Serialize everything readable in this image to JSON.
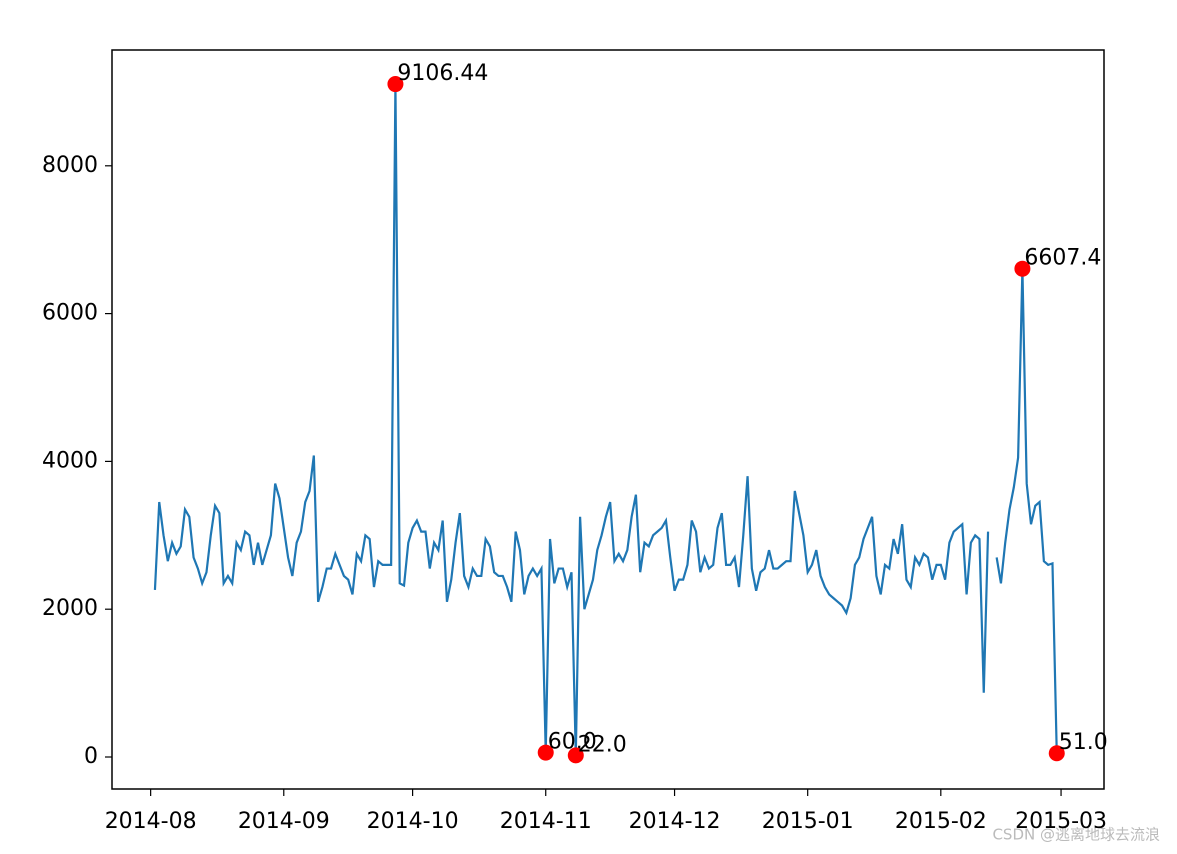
{
  "chart_data": {
    "type": "line",
    "xlim": [
      "2014-07-23",
      "2015-03-11"
    ],
    "ylim": [
      -433,
      9567
    ],
    "xticks": [
      {
        "value": "2014-08-01",
        "label": "2014-08"
      },
      {
        "value": "2014-09-01",
        "label": "2014-09"
      },
      {
        "value": "2014-10-01",
        "label": "2014-10"
      },
      {
        "value": "2014-11-01",
        "label": "2014-11"
      },
      {
        "value": "2014-12-01",
        "label": "2014-12"
      },
      {
        "value": "2015-01-01",
        "label": "2015-01"
      },
      {
        "value": "2015-02-01",
        "label": "2015-02"
      },
      {
        "value": "2015-03-01",
        "label": "2015-03"
      }
    ],
    "yticks": [
      0,
      2000,
      4000,
      6000,
      8000
    ],
    "series": [
      {
        "color": "#1f77b4",
        "x": [
          "2014-08-02",
          "2014-08-03",
          "2014-08-04",
          "2014-08-05",
          "2014-08-06",
          "2014-08-07",
          "2014-08-08",
          "2014-08-09",
          "2014-08-10",
          "2014-08-11",
          "2014-08-12",
          "2014-08-13",
          "2014-08-14",
          "2014-08-15",
          "2014-08-16",
          "2014-08-17",
          "2014-08-18",
          "2014-08-19",
          "2014-08-20",
          "2014-08-21",
          "2014-08-22",
          "2014-08-23",
          "2014-08-24",
          "2014-08-25",
          "2014-08-26",
          "2014-08-27",
          "2014-08-28",
          "2014-08-29",
          "2014-08-30",
          "2014-08-31",
          "2014-09-01",
          "2014-09-02",
          "2014-09-03",
          "2014-09-04",
          "2014-09-05",
          "2014-09-06",
          "2014-09-07",
          "2014-09-08",
          "2014-09-09",
          "2014-09-10",
          "2014-09-11",
          "2014-09-12",
          "2014-09-13",
          "2014-09-14",
          "2014-09-15",
          "2014-09-16",
          "2014-09-17",
          "2014-09-18",
          "2014-09-19",
          "2014-09-20",
          "2014-09-21",
          "2014-09-22",
          "2014-09-23",
          "2014-09-24",
          "2014-09-25",
          "2014-09-26",
          "2014-09-27",
          "2014-09-28",
          "2014-09-29",
          "2014-09-30",
          "2014-10-01",
          "2014-10-02",
          "2014-10-03",
          "2014-10-04",
          "2014-10-05",
          "2014-10-06",
          "2014-10-07",
          "2014-10-08",
          "2014-10-09",
          "2014-10-10",
          "2014-10-11",
          "2014-10-12",
          "2014-10-13",
          "2014-10-14",
          "2014-10-15",
          "2014-10-16",
          "2014-10-17",
          "2014-10-18",
          "2014-10-19",
          "2014-10-20",
          "2014-10-21",
          "2014-10-22",
          "2014-10-23",
          "2014-10-24",
          "2014-10-25",
          "2014-10-26",
          "2014-10-27",
          "2014-10-28",
          "2014-10-29",
          "2014-10-30",
          "2014-10-31",
          "2014-11-01",
          "2014-11-02",
          "2014-11-03",
          "2014-11-04",
          "2014-11-05",
          "2014-11-06",
          "2014-11-07",
          "2014-11-08",
          "2014-11-09",
          "2014-11-10",
          "2014-11-11",
          "2014-11-12",
          "2014-11-13",
          "2014-11-14",
          "2014-11-15",
          "2014-11-16",
          "2014-11-17",
          "2014-11-18",
          "2014-11-19",
          "2014-11-20",
          "2014-11-21",
          "2014-11-22",
          "2014-11-23",
          "2014-11-24",
          "2014-11-25",
          "2014-11-26",
          "2014-11-27",
          "2014-11-28",
          "2014-11-29",
          "2014-11-30",
          "2014-12-01",
          "2014-12-02",
          "2014-12-03",
          "2014-12-04",
          "2014-12-05",
          "2014-12-06",
          "2014-12-07",
          "2014-12-08",
          "2014-12-09",
          "2014-12-10",
          "2014-12-11",
          "2014-12-12",
          "2014-12-13",
          "2014-12-14",
          "2014-12-15",
          "2014-12-16",
          "2014-12-17",
          "2014-12-18",
          "2014-12-19",
          "2014-12-20",
          "2014-12-21",
          "2014-12-22",
          "2014-12-23",
          "2014-12-24",
          "2014-12-25",
          "2014-12-26",
          "2014-12-27",
          "2014-12-28",
          "2014-12-29",
          "2014-12-30",
          "2014-12-31",
          "2015-01-01",
          "2015-01-02",
          "2015-01-03",
          "2015-01-04",
          "2015-01-05",
          "2015-01-06",
          "2015-01-07",
          "2015-01-08",
          "2015-01-09",
          "2015-01-10",
          "2015-01-11",
          "2015-01-12",
          "2015-01-13",
          "2015-01-14",
          "2015-01-15",
          "2015-01-16",
          "2015-01-17",
          "2015-01-18",
          "2015-01-19",
          "2015-01-20",
          "2015-01-21",
          "2015-01-22",
          "2015-01-23",
          "2015-01-24",
          "2015-01-25",
          "2015-01-26",
          "2015-01-27",
          "2015-01-28",
          "2015-01-29",
          "2015-01-30",
          "2015-01-31",
          "2015-02-01",
          "2015-02-02",
          "2015-02-03",
          "2015-02-04",
          "2015-02-05",
          "2015-02-06",
          "2015-02-07",
          "2015-02-08",
          "2015-02-09",
          "2015-02-10",
          "2015-02-11",
          "2015-02-12",
          "2015-02-13",
          "2015-02-14",
          "2015-02-15",
          "2015-02-16",
          "2015-02-17",
          "2015-02-18",
          "2015-02-19",
          "2015-02-20",
          "2015-02-21",
          "2015-02-22",
          "2015-02-23",
          "2015-02-24",
          "2015-02-25",
          "2015-02-26",
          "2015-02-27",
          "2015-02-28"
        ],
        "values": [
          2260,
          3450,
          3000,
          2650,
          2900,
          2750,
          2850,
          3350,
          3250,
          2700,
          2550,
          2350,
          2500,
          3000,
          3400,
          3300,
          2350,
          2450,
          2350,
          2900,
          2800,
          3050,
          3000,
          2600,
          2900,
          2600,
          2800,
          3000,
          3700,
          3500,
          3100,
          2700,
          2450,
          2900,
          3050,
          3450,
          3600,
          4080,
          2100,
          2300,
          2550,
          2550,
          2750,
          2600,
          2450,
          2400,
          2200,
          2750,
          2650,
          3000,
          2950,
          2300,
          2650,
          2600,
          2600,
          2600,
          9106.44,
          2350,
          2320,
          2900,
          3100,
          3200,
          3050,
          3050,
          2550,
          2900,
          2800,
          3200,
          2100,
          2400,
          2900,
          3300,
          2450,
          2300,
          2550,
          2450,
          2450,
          2950,
          2850,
          2500,
          2450,
          2450,
          2300,
          2100,
          3050,
          2800,
          2200,
          2450,
          2550,
          2450,
          2550,
          60.0,
          2950,
          2350,
          2550,
          2550,
          2300,
          2500,
          22.0,
          3250,
          2000,
          2200,
          2400,
          2800,
          3000,
          3250,
          3450,
          2650,
          2750,
          2650,
          2800,
          3250,
          3550,
          2500,
          2900,
          2850,
          3000,
          3050,
          3100,
          3200,
          2700,
          2250,
          2400,
          2400,
          2600,
          3200,
          3050,
          2500,
          2700,
          2550,
          2600,
          3100,
          3300,
          2600,
          2600,
          2700,
          2300,
          3000,
          3800,
          2550,
          2250,
          2500,
          2550,
          2800,
          2550,
          2550,
          2600,
          2650,
          2650,
          3600,
          3300,
          3000,
          2500,
          2600,
          2800,
          2450,
          2300,
          2200,
          2150,
          2100,
          2050,
          1950,
          2150,
          2600,
          2700,
          2950,
          3100,
          3250,
          2450,
          2200,
          2600,
          2550,
          2950,
          2750,
          3150,
          2400,
          2300,
          2700,
          2600,
          2750,
          2700,
          2400,
          2600,
          2600,
          2400,
          2900,
          3050,
          3100,
          3150,
          2200,
          2900,
          3000,
          2950,
          870,
          3050,
          null,
          2700,
          2350,
          2900,
          3350,
          3650,
          4050,
          6607.4,
          3700,
          3150,
          3400,
          3450,
          2650,
          2600,
          2620,
          51.0
        ]
      }
    ],
    "annotations": {
      "color": "red",
      "x": [
        "2014-09-27",
        "2014-11-01",
        "2014-11-08",
        "2015-02-20",
        "2015-02-28"
      ],
      "values": [
        9106.44,
        60.0,
        22.0,
        6607.4,
        51.0
      ],
      "value_labels": [
        "9106.44",
        "60.0",
        "22.0",
        "6607.4",
        "51.0"
      ]
    },
    "watermark": "CSDN @逃离地球去流浪"
  }
}
